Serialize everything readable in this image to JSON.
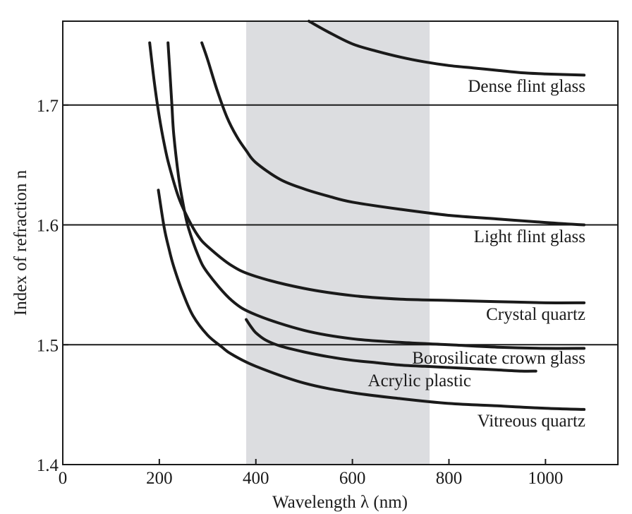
{
  "chart_data": {
    "type": "line",
    "title": "",
    "xlabel": "Wavelength λ (nm)",
    "ylabel": "Index of refraction n",
    "xlim": [
      0,
      1150
    ],
    "ylim": [
      1.4,
      1.77
    ],
    "x_ticks": [
      0,
      200,
      400,
      600,
      800,
      1000
    ],
    "x_tick_labels": [
      "0",
      "200",
      "400",
      "600",
      "800",
      "1000"
    ],
    "y_ticks": [
      1.4,
      1.5,
      1.6,
      1.7
    ],
    "y_tick_labels": [
      "1.4",
      "1.5",
      "1.6",
      "1.7"
    ],
    "grid": "horizontal lines at 1.5, 1.6, 1.7",
    "shaded_band": {
      "x_range": [
        380,
        760
      ],
      "color": "#dcdde0"
    },
    "colors": {
      "curve": "#1a1a1a",
      "band": "#dcdde0",
      "background": "#ffffff"
    },
    "series": [
      {
        "name": "Dense flint glass",
        "x": [
          510,
          550,
          600,
          650,
          700,
          750,
          800,
          850,
          900,
          950,
          1000,
          1080
        ],
        "y": [
          1.77,
          1.761,
          1.751,
          1.745,
          1.74,
          1.736,
          1.733,
          1.731,
          1.729,
          1.727,
          1.726,
          1.725
        ]
      },
      {
        "name": "Light flint glass",
        "x": [
          288,
          300,
          320,
          340,
          360,
          380,
          400,
          450,
          500,
          550,
          600,
          700,
          800,
          900,
          1000,
          1080
        ],
        "y": [
          1.752,
          1.738,
          1.712,
          1.69,
          1.674,
          1.662,
          1.652,
          1.638,
          1.63,
          1.624,
          1.619,
          1.613,
          1.608,
          1.605,
          1.602,
          1.6
        ]
      },
      {
        "name": "Crystal quartz",
        "x": [
          180,
          190,
          200,
          210,
          220,
          240,
          260,
          280,
          300,
          350,
          400,
          500,
          600,
          700,
          800,
          900,
          1000,
          1080
        ],
        "y": [
          1.752,
          1.718,
          1.69,
          1.668,
          1.65,
          1.623,
          1.605,
          1.591,
          1.582,
          1.566,
          1.557,
          1.547,
          1.541,
          1.538,
          1.537,
          1.536,
          1.535,
          1.535
        ]
      },
      {
        "name": "Borosilicate crown glass",
        "x": [
          218,
          222,
          226,
          230,
          240,
          250,
          260,
          280,
          300,
          350,
          400,
          500,
          600,
          700,
          800,
          900,
          1000,
          1080
        ],
        "y": [
          1.752,
          1.727,
          1.7,
          1.675,
          1.64,
          1.616,
          1.598,
          1.575,
          1.56,
          1.537,
          1.525,
          1.512,
          1.505,
          1.502,
          1.5,
          1.498,
          1.497,
          1.497
        ]
      },
      {
        "name": "Acrylic plastic",
        "x": [
          380,
          390,
          400,
          420,
          450,
          500,
          550,
          600,
          650,
          700,
          750,
          800,
          850,
          900,
          950,
          980
        ],
        "y": [
          1.521,
          1.515,
          1.51,
          1.504,
          1.499,
          1.494,
          1.49,
          1.487,
          1.485,
          1.483,
          1.482,
          1.481,
          1.48,
          1.479,
          1.478,
          1.478
        ]
      },
      {
        "name": "Vitreous quartz",
        "x": [
          198,
          210,
          220,
          230,
          250,
          270,
          300,
          330,
          350,
          400,
          500,
          600,
          700,
          800,
          900,
          1000,
          1080
        ],
        "y": [
          1.629,
          1.598,
          1.58,
          1.565,
          1.542,
          1.524,
          1.508,
          1.498,
          1.492,
          1.482,
          1.468,
          1.46,
          1.455,
          1.451,
          1.449,
          1.447,
          1.446
        ]
      }
    ]
  }
}
